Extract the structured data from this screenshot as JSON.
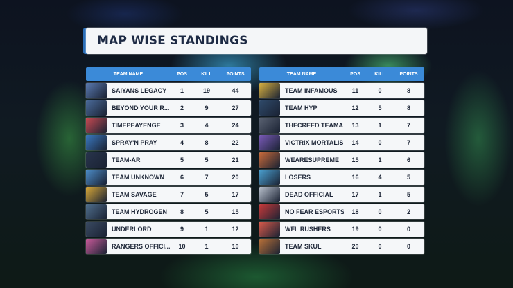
{
  "title": "MAP WISE STANDINGS",
  "columns": {
    "team": "TEAM NAME",
    "pos": "POS",
    "kill": "KILL",
    "points": "POINTS"
  },
  "left_table": [
    {
      "name": "SAIYANS LEGACY",
      "pos": "1",
      "kill": "19",
      "points": "44",
      "logo_color": "#5a7ab0",
      "logo_icon": "saiyans-logo-icon"
    },
    {
      "name": "BEYOND YOUR R...",
      "pos": "2",
      "kill": "9",
      "points": "27",
      "logo_color": "#4a6a9a",
      "logo_icon": "beyond-logo-icon"
    },
    {
      "name": "TIMEPEAYENGE",
      "pos": "3",
      "kill": "4",
      "points": "24",
      "logo_color": "#c84a52",
      "logo_icon": "timepeayenge-logo-icon"
    },
    {
      "name": "SPRAY'N PRAY",
      "pos": "4",
      "kill": "8",
      "points": "22",
      "logo_color": "#3a78c0",
      "logo_icon": "spraynpray-logo-icon"
    },
    {
      "name": "TEAM-AR",
      "pos": "5",
      "kill": "5",
      "points": "21",
      "logo_color": "#28344c",
      "logo_icon": "team-ar-logo-icon"
    },
    {
      "name": "TEAM UNKNOWN",
      "pos": "6",
      "kill": "7",
      "points": "20",
      "logo_color": "#4c8cc8",
      "logo_icon": "unknown-logo-icon"
    },
    {
      "name": "TEAM SAVAGE",
      "pos": "7",
      "kill": "5",
      "points": "17",
      "logo_color": "#d8a838",
      "logo_icon": "savage-logo-icon"
    },
    {
      "name": "TEAM HYDROGEN",
      "pos": "8",
      "kill": "5",
      "points": "15",
      "logo_color": "#4f6e8c",
      "logo_icon": "hydrogen-logo-icon"
    },
    {
      "name": "UNDERLORD",
      "pos": "9",
      "kill": "1",
      "points": "12",
      "logo_color": "#3a4a62",
      "logo_icon": "underlord-logo-icon"
    },
    {
      "name": "RANGERS OFFICI...",
      "pos": "10",
      "kill": "1",
      "points": "10",
      "logo_color": "#c85a9a",
      "logo_icon": "rangers-logo-icon"
    }
  ],
  "right_table": [
    {
      "name": "TEAM INFAMOUS",
      "pos": "11",
      "kill": "0",
      "points": "8",
      "logo_color": "#d8b040",
      "logo_icon": "infamous-logo-icon"
    },
    {
      "name": "TEAM HYP",
      "pos": "12",
      "kill": "5",
      "points": "8",
      "logo_color": "#2f4a6a",
      "logo_icon": "hyp-logo-icon"
    },
    {
      "name": "THECREED TEAMA",
      "pos": "13",
      "kill": "1",
      "points": "7",
      "logo_color": "#5a6272",
      "logo_icon": "thecreed-logo-icon"
    },
    {
      "name": "VICTRIX MORTALIS",
      "pos": "14",
      "kill": "0",
      "points": "7",
      "logo_color": "#7a5ab8",
      "logo_icon": "victrix-logo-icon"
    },
    {
      "name": "WEARESUPREME",
      "pos": "15",
      "kill": "1",
      "points": "6",
      "logo_color": "#c86a3a",
      "logo_icon": "wearesupreme-logo-icon"
    },
    {
      "name": "LOSERS",
      "pos": "16",
      "kill": "4",
      "points": "5",
      "logo_color": "#4aa0d0",
      "logo_icon": "losers-logo-icon"
    },
    {
      "name": "DEAD OFFICIAL",
      "pos": "17",
      "kill": "1",
      "points": "5",
      "logo_color": "#b8c0cc",
      "logo_icon": "dead-logo-icon"
    },
    {
      "name": "NO FEAR ESPORTS",
      "pos": "18",
      "kill": "0",
      "points": "2",
      "logo_color": "#c83a3a",
      "logo_icon": "nofear-logo-icon"
    },
    {
      "name": "WFL RUSHERS",
      "pos": "19",
      "kill": "0",
      "points": "0",
      "logo_color": "#d85a4a",
      "logo_icon": "wfl-logo-icon"
    },
    {
      "name": "TEAM SKUL",
      "pos": "20",
      "kill": "0",
      "points": "0",
      "logo_color": "#b87038",
      "logo_icon": "skul-logo-icon"
    }
  ]
}
